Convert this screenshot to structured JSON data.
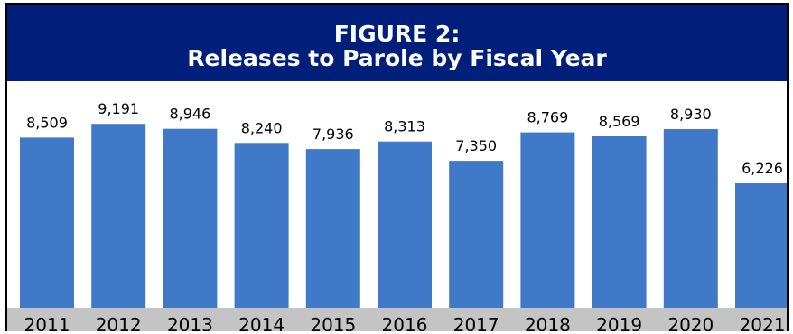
{
  "chart_data": {
    "type": "bar",
    "title": "FIGURE 2:",
    "subtitle": "Releases to Parole by Fiscal Year",
    "categories": [
      "2011",
      "2012",
      "2013",
      "2014",
      "2015",
      "2016",
      "2017",
      "2018",
      "2019",
      "2020",
      "2021"
    ],
    "values": [
      8509,
      9191,
      8946,
      8240,
      7936,
      8313,
      7350,
      8769,
      8569,
      8930,
      6226
    ],
    "data_labels": [
      "8,509",
      "9,191",
      "8,946",
      "8,240",
      "7,936",
      "8,313",
      "7,350",
      "8,769",
      "8,569",
      "8,930",
      "6,226"
    ],
    "ylim": [
      0,
      10600
    ],
    "grid": false,
    "legend": "none",
    "colors": {
      "bar": "#4079c8",
      "header": "#001f7a",
      "axis_band": "#c4c4c4",
      "title_text": "#ffffff"
    }
  }
}
